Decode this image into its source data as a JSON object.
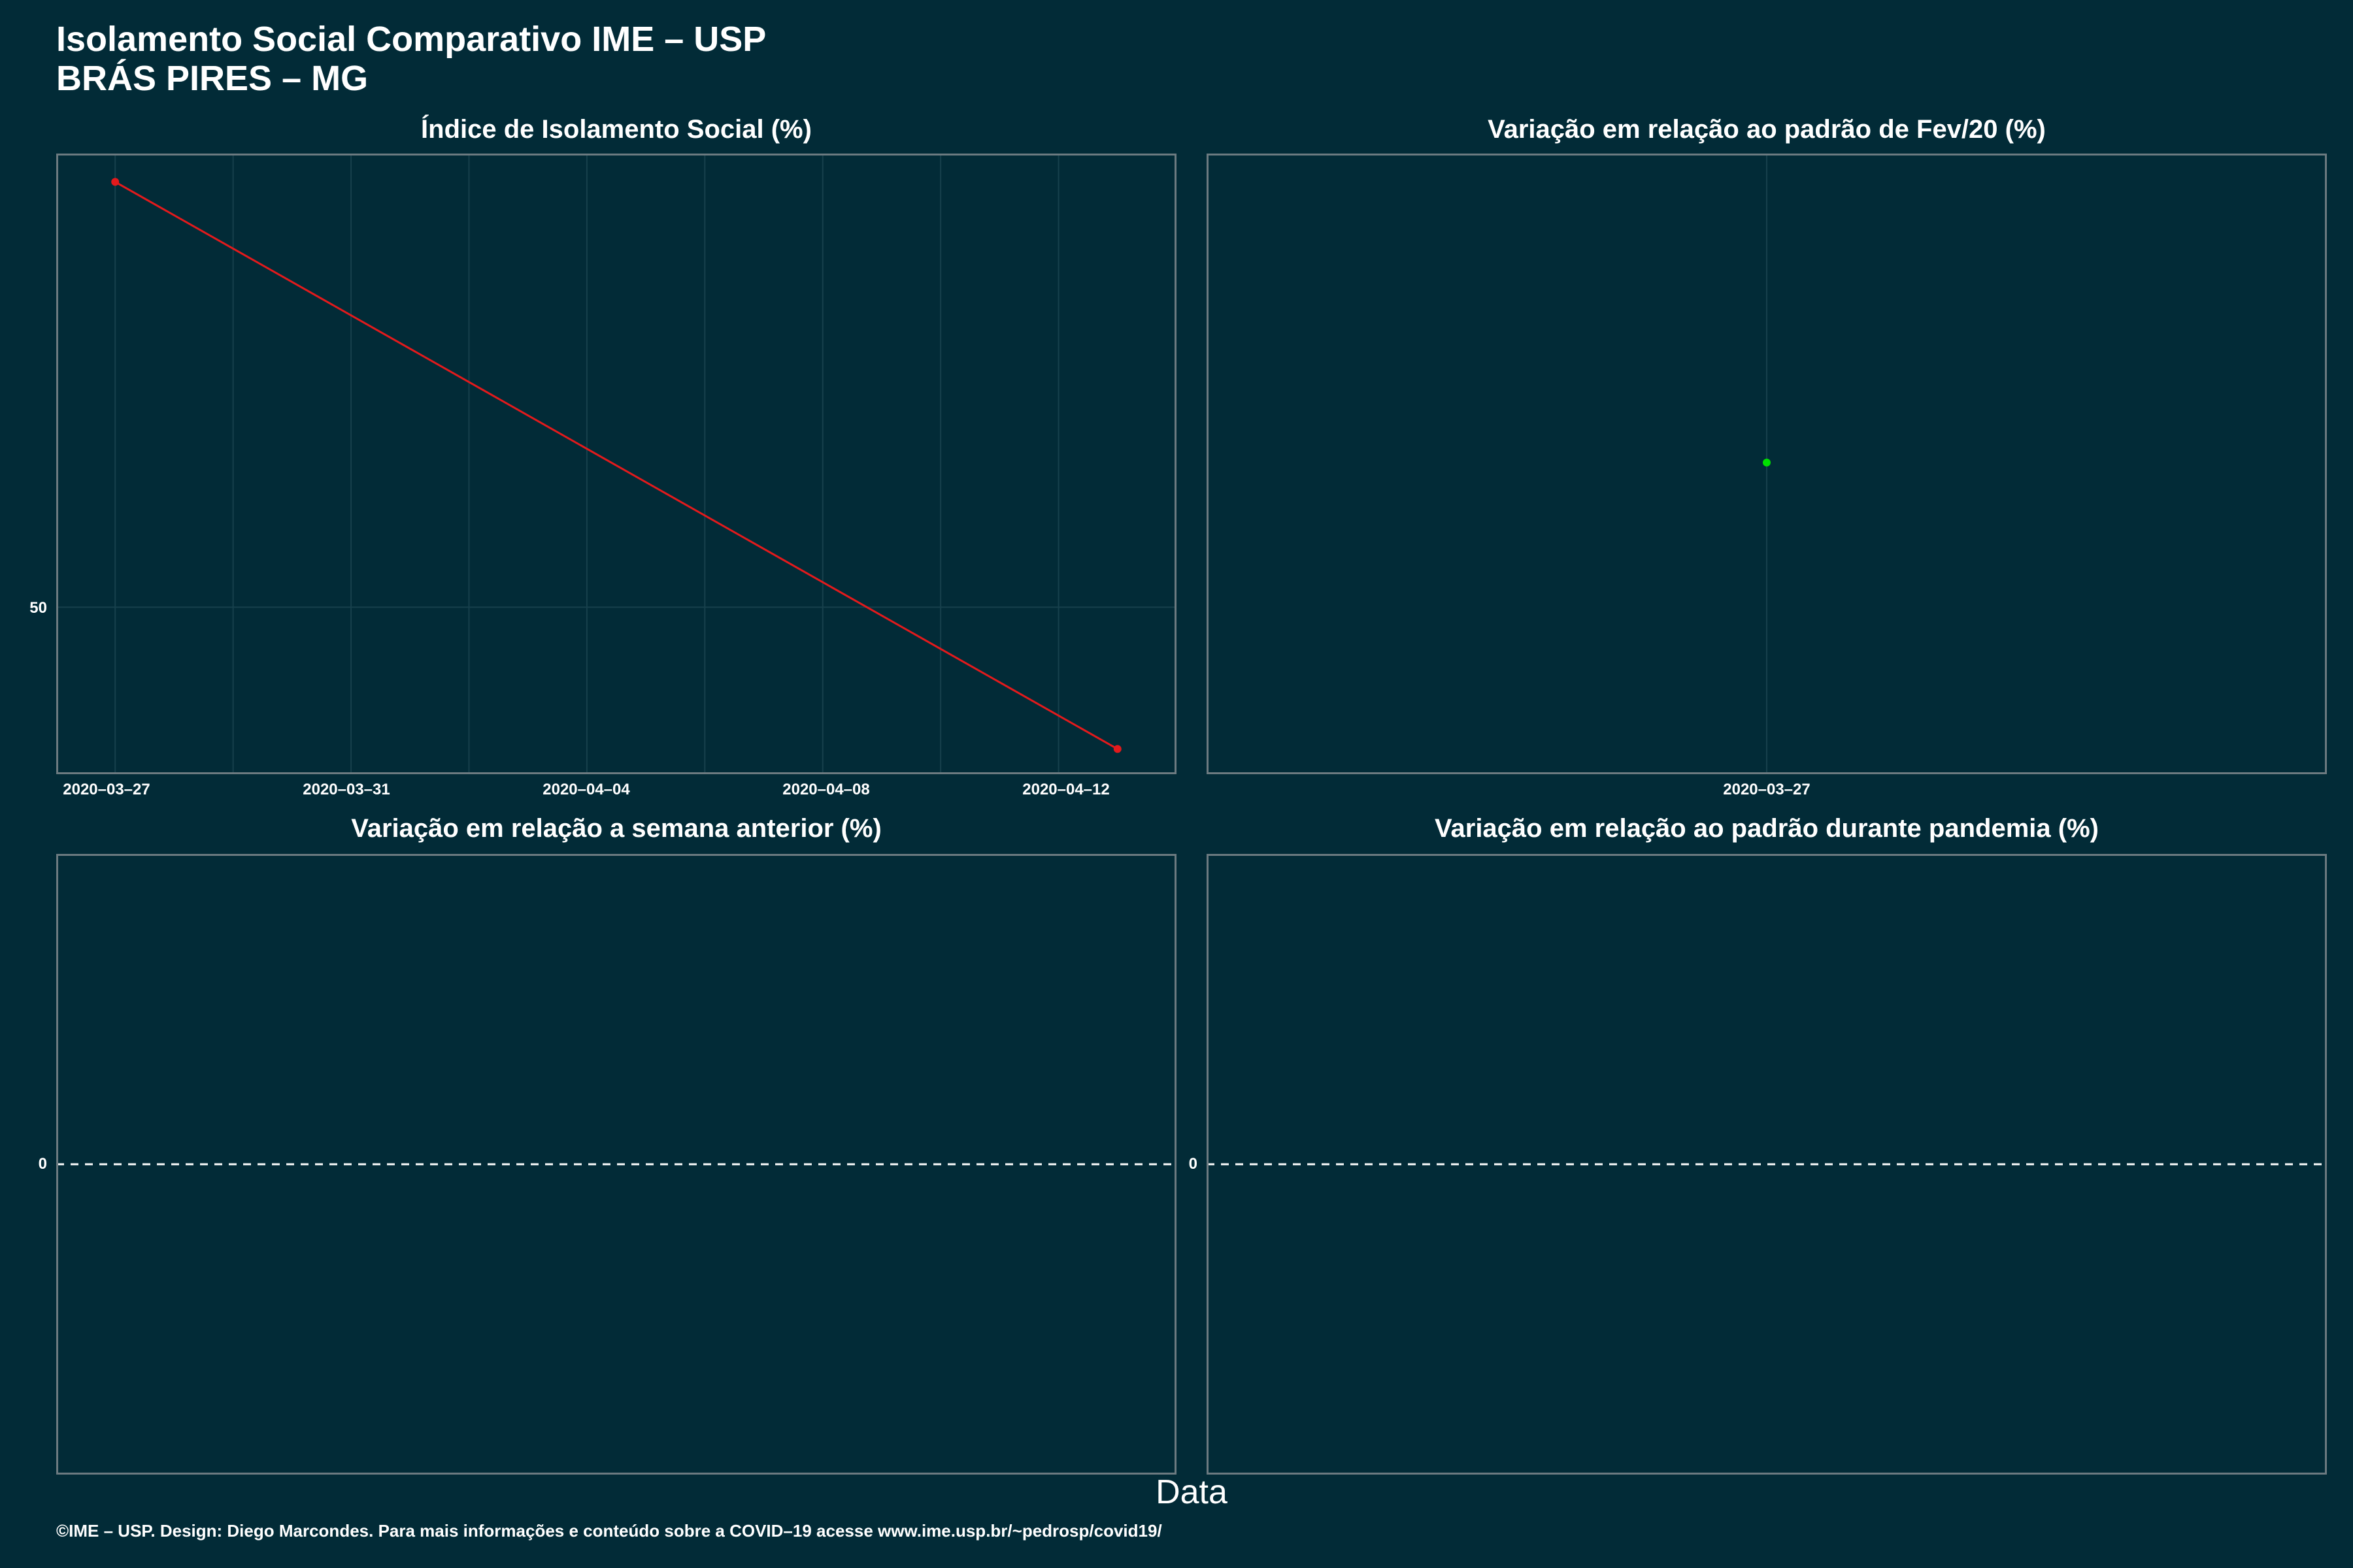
{
  "title": "Isolamento Social Comparativo IME – USP",
  "subtitle": "BRÁS PIRES – MG",
  "xlabel": "Data",
  "caption": "©IME – USP. Design: Diego Marcondes. Para mais informações e conteúdo sobre a COVID–19 acesse www.ime.usp.br/~pedrosp/covid19/",
  "colors": {
    "background": "#022b37",
    "series1": "#e31a1c",
    "series2": "#00e000",
    "grid": "#17404c",
    "zero_line": "#ffffff"
  },
  "chart_data": [
    {
      "type": "line",
      "title": "Índice de Isolamento Social (%)",
      "x": [
        "2020-03-27",
        "2020-04-13"
      ],
      "values": [
        63.5,
        45.5
      ],
      "ytick": "50",
      "ytick_value": 50,
      "ylim": [
        44.7,
        64.4
      ],
      "xticks": [
        "2020–03–27",
        "2020–04–12",
        "2020–04–04",
        "2020–04–08",
        "2020–03–31"
      ],
      "xlim": [
        "2020-03-26",
        "2020-04-14"
      ],
      "grid": true
    },
    {
      "type": "scatter",
      "title": "Variação em relação ao padrão de Fev/20 (%)",
      "x": [
        "2020-03-27"
      ],
      "values": [
        0
      ],
      "xticks": [
        "2020–03–27"
      ],
      "grid": true
    },
    {
      "type": "line",
      "title": "Variação em relação a semana anterior (%)",
      "values": [],
      "ytick": "0",
      "reference_line": 0
    },
    {
      "type": "line",
      "title": "Variação em relação ao padrão durante pandemia (%)",
      "values": [],
      "ytick": "0",
      "reference_line": 0
    }
  ]
}
